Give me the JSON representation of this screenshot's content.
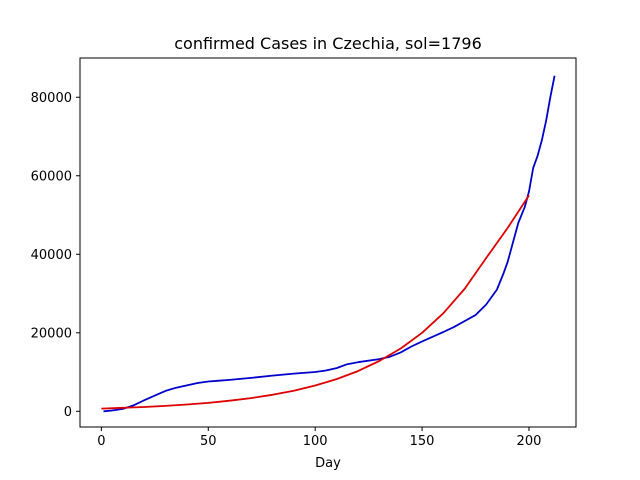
{
  "chart_data": {
    "type": "line",
    "title": "confirmed Cases in Czechia, sol=1796",
    "xlabel": "Day",
    "ylabel": "",
    "xlim": [
      -10,
      222
    ],
    "ylim": [
      -4000,
      90000
    ],
    "xticks": [
      0,
      50,
      100,
      150,
      200
    ],
    "yticks": [
      0,
      20000,
      40000,
      60000,
      80000
    ],
    "grid": false,
    "series": [
      {
        "color": "#0000cc",
        "x": [
          1,
          5,
          10,
          15,
          20,
          25,
          30,
          35,
          40,
          45,
          50,
          55,
          60,
          70,
          80,
          90,
          100,
          105,
          110,
          115,
          120,
          130,
          135,
          140,
          145,
          150,
          155,
          160,
          165,
          170,
          175,
          180,
          185,
          188,
          190,
          193,
          195,
          198,
          200,
          202,
          204,
          206,
          208,
          210,
          212
        ],
        "y": [
          0,
          200,
          600,
          1500,
          2800,
          4000,
          5200,
          6000,
          6600,
          7200,
          7600,
          7800,
          8000,
          8500,
          9100,
          9600,
          10000,
          10400,
          11000,
          12000,
          12500,
          13300,
          13900,
          15000,
          16500,
          17800,
          19000,
          20200,
          21500,
          23000,
          24500,
          27200,
          31000,
          35000,
          38000,
          44000,
          48000,
          52000,
          56000,
          62000,
          65000,
          69000,
          74000,
          80000,
          85500
        ]
      },
      {
        "color": "#dd0000",
        "x": [
          0,
          10,
          20,
          30,
          40,
          50,
          60,
          70,
          80,
          90,
          100,
          110,
          120,
          130,
          140,
          150,
          160,
          170,
          180,
          190,
          200
        ],
        "y": [
          700,
          880,
          1100,
          1380,
          1720,
          2150,
          2690,
          3360,
          4200,
          5250,
          6560,
          8200,
          10250,
          12810,
          16000,
          20000,
          25000,
          31250,
          39050,
          46700,
          55000
        ]
      }
    ]
  }
}
